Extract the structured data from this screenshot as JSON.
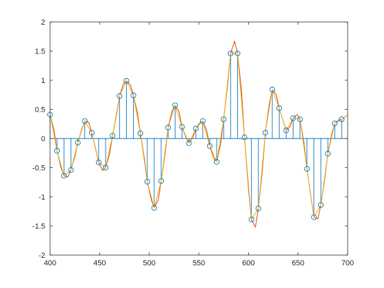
{
  "chart_data": {
    "type": "line",
    "title": "",
    "xlabel": "",
    "ylabel": "",
    "xlim": [
      400,
      700
    ],
    "ylim": [
      -2,
      2
    ],
    "xticks": [
      400,
      450,
      500,
      550,
      600,
      650,
      700
    ],
    "yticks": [
      -2,
      -1.5,
      -1,
      -0.5,
      0,
      0.5,
      1,
      1.5,
      2
    ],
    "grid": false,
    "legend": "none",
    "series": [
      {
        "kind": "stem",
        "color": "#0072BD",
        "x": [
          400,
          407,
          414,
          421,
          428,
          435,
          442,
          449,
          456,
          463,
          470,
          477,
          484,
          491,
          498,
          505,
          512,
          519,
          526,
          533,
          540,
          547,
          554,
          561,
          568,
          575,
          582,
          589,
          596,
          603,
          610,
          617,
          624,
          631,
          638,
          645,
          652,
          659,
          666,
          673,
          680,
          687,
          694
        ],
        "y": [
          0.41,
          -0.21,
          -0.64,
          -0.54,
          -0.07,
          0.3,
          0.1,
          -0.41,
          -0.5,
          0.05,
          0.73,
          0.99,
          0.74,
          0.09,
          -0.74,
          -1.19,
          -0.73,
          0.19,
          0.57,
          0.2,
          -0.08,
          0.17,
          0.3,
          -0.13,
          -0.4,
          0.33,
          1.46,
          1.46,
          0.02,
          -1.39,
          -1.2,
          0.1,
          0.84,
          0.52,
          0.14,
          0.35,
          0.33,
          -0.52,
          -1.35,
          -1.14,
          -0.26,
          0.26,
          0.33
        ]
      },
      {
        "kind": "line",
        "color": "#D95319",
        "x": [
          400,
          404,
          407,
          411,
          414,
          418,
          421,
          425,
          428,
          432,
          435,
          439,
          442,
          446,
          449,
          453,
          456,
          460,
          463,
          467,
          470,
          474,
          477,
          481,
          484,
          488,
          491,
          495,
          498,
          502,
          505,
          509,
          512,
          516,
          519,
          523,
          526,
          530,
          533,
          537,
          540,
          544,
          547,
          551,
          554,
          558,
          561,
          565,
          568,
          572,
          575,
          579,
          582,
          586,
          589,
          593,
          596,
          600,
          603,
          607,
          610,
          614,
          617,
          621,
          624,
          628,
          631,
          635,
          638,
          642,
          645,
          649,
          652,
          656,
          659,
          663,
          666,
          670,
          673,
          677,
          680,
          684,
          687,
          691,
          694,
          698,
          700
        ],
        "y": [
          0.41,
          0.14,
          -0.21,
          -0.5,
          -0.64,
          -0.66,
          -0.54,
          -0.31,
          -0.07,
          0.16,
          0.3,
          0.28,
          0.1,
          -0.18,
          -0.41,
          -0.55,
          -0.5,
          -0.27,
          0.05,
          0.41,
          0.73,
          0.94,
          0.99,
          0.92,
          0.74,
          0.45,
          0.09,
          -0.33,
          -0.74,
          -1.05,
          -1.19,
          -1.06,
          -0.73,
          -0.26,
          0.19,
          0.47,
          0.57,
          0.46,
          0.2,
          0.02,
          -0.08,
          0.02,
          0.17,
          0.27,
          0.3,
          0.13,
          -0.13,
          -0.34,
          -0.4,
          -0.09,
          0.33,
          0.92,
          1.46,
          1.67,
          1.46,
          0.82,
          0.02,
          -0.86,
          -1.39,
          -1.52,
          -1.2,
          -0.55,
          0.1,
          0.59,
          0.84,
          0.75,
          0.52,
          0.3,
          0.14,
          0.2,
          0.35,
          0.41,
          0.33,
          -0.08,
          -0.52,
          -1.0,
          -1.35,
          -1.38,
          -1.14,
          -0.68,
          -0.26,
          0.08,
          0.26,
          0.32,
          0.33,
          0.38,
          0.4
        ]
      },
      {
        "kind": "line",
        "color": "#EDB120",
        "x": [
          400,
          407,
          414,
          421,
          428,
          435,
          442,
          449,
          456,
          463,
          470,
          477,
          484,
          491,
          498,
          505,
          512,
          519,
          526,
          533,
          540,
          547,
          554,
          561,
          568,
          575,
          582,
          589,
          596,
          603,
          610,
          617,
          624,
          631,
          638,
          645,
          652,
          659,
          666,
          673,
          680,
          687,
          694,
          700
        ],
        "y": [
          0.41,
          -0.21,
          -0.64,
          -0.54,
          -0.07,
          0.3,
          0.1,
          -0.41,
          -0.5,
          0.05,
          0.73,
          0.99,
          0.74,
          0.09,
          -0.74,
          -1.19,
          -0.73,
          0.19,
          0.57,
          0.2,
          -0.08,
          0.17,
          0.3,
          -0.13,
          -0.4,
          0.33,
          1.46,
          1.46,
          0.02,
          -1.39,
          -1.2,
          0.1,
          0.84,
          0.52,
          0.14,
          0.35,
          0.33,
          -0.52,
          -1.35,
          -1.14,
          -0.26,
          0.26,
          0.33,
          0.4
        ]
      }
    ]
  }
}
